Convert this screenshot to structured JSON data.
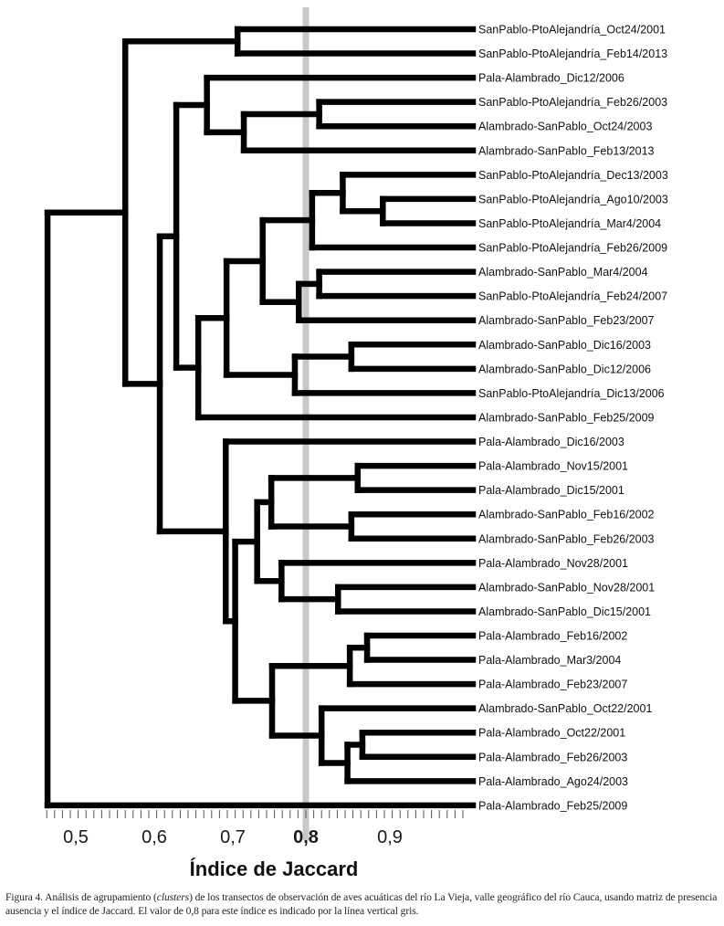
{
  "chart_data": {
    "type": "dendrogram",
    "title": "",
    "xlabel": "Índice de Jaccard",
    "ylabel": "",
    "xlim": [
      0.47,
      1.0
    ],
    "ticks": [
      {
        "value": 0.5,
        "label": "0,5",
        "bold": false
      },
      {
        "value": 0.6,
        "label": "0,6",
        "bold": false
      },
      {
        "value": 0.7,
        "label": "0,7",
        "bold": false
      },
      {
        "value": 0.8,
        "label": "0,8",
        "bold": true
      },
      {
        "value": 0.9,
        "label": "0,9",
        "bold": false
      }
    ],
    "minor_tick_step": 0.01,
    "reference_line": {
      "value": 0.8,
      "color": "#c8c8c8"
    },
    "line_color": "#000000",
    "leaves": [
      "SanPablo-PtoAlejandría_Oct24/2001",
      "SanPablo-PtoAlejandría_Feb14/2013",
      "Pala-Alambrado_Dic12/2006",
      "SanPablo-PtoAlejandría_Feb26/2003",
      "Alambrado-SanPablo_Oct24/2003",
      "Alambrado-SanPablo_Feb13/2013",
      "SanPablo-PtoAlejandría_Dec13/2003",
      "SanPablo-PtoAlejandría_Ago10/2003",
      "SanPablo-PtoAlejandría_Mar4/2004",
      "SanPablo-PtoAlejandría_Feb26/2009",
      "Alambrado-SanPablo_Mar4/2004",
      "SanPablo-PtoAlejandría_Feb24/2007",
      "Alambrado-SanPablo_Feb23/2007",
      "Alambrado-SanPablo_Dic16/2003",
      "Alambrado-SanPablo_Dic12/2006",
      "SanPablo-PtoAlejandría_Dic13/2006",
      "Alambrado-SanPablo_Feb25/2009",
      "Pala-Alambrado_Dic16/2003",
      "Pala-Alambrado_Nov15/2001",
      "Pala-Alambrado_Dic15/2001",
      "Alambrado-SanPablo_Feb16/2002",
      "Alambrado-SanPablo_Feb26/2003",
      "Pala-Alambrado_Nov28/2001",
      "Alambrado-SanPablo_Nov28/2001",
      "Alambrado-SanPablo_Dic15/2001",
      "Pala-Alambrado_Feb16/2002",
      "Pala-Alambrado_Mar3/2004",
      "Pala-Alambrado_Feb23/2007",
      "Alambrado-SanPablo_Oct22/2001",
      "Pala-Alambrado_Oct22/2001",
      "Pala-Alambrado_Feb26/2003",
      "Pala-Alambrado_Ago24/2003",
      "Pala-Alambrado_Feb25/2009"
    ],
    "tree": {
      "h": 0.471,
      "children": [
        {
          "h": 0.57,
          "children": [
            {
              "h": 0.713,
              "children": [
                {
                  "leaf": 0
                },
                {
                  "leaf": 1
                }
              ]
            },
            {
              "h": 0.614,
              "children": [
                {
                  "h": 0.635,
                  "children": [
                    {
                      "h": 0.674,
                      "children": [
                        {
                          "leaf": 2
                        },
                        {
                          "h": 0.721,
                          "children": [
                            {
                              "h": 0.817,
                              "children": [
                                {
                                  "leaf": 3
                                },
                                {
                                  "leaf": 4
                                }
                              ]
                            },
                            {
                              "leaf": 5
                            }
                          ]
                        }
                      ]
                    },
                    {
                      "h": 0.663,
                      "children": [
                        {
                          "h": 0.699,
                          "children": [
                            {
                              "h": 0.745,
                              "children": [
                                {
                                  "h": 0.808,
                                  "children": [
                                    {
                                      "h": 0.847,
                                      "children": [
                                        {
                                          "leaf": 6
                                        },
                                        {
                                          "h": 0.898,
                                          "children": [
                                            {
                                              "leaf": 7
                                            },
                                            {
                                              "leaf": 8
                                            }
                                          ]
                                        }
                                      ]
                                    },
                                    {
                                      "leaf": 9
                                    }
                                  ]
                                },
                                {
                                  "h": 0.791,
                                  "children": [
                                    {
                                      "h": 0.817,
                                      "children": [
                                        {
                                          "leaf": 10
                                        },
                                        {
                                          "leaf": 11
                                        }
                                      ]
                                    },
                                    {
                                      "leaf": 12
                                    }
                                  ]
                                }
                              ]
                            },
                            {
                              "h": 0.786,
                              "children": [
                                {
                                  "h": 0.858,
                                  "children": [
                                    {
                                      "leaf": 13
                                    },
                                    {
                                      "leaf": 14
                                    }
                                  ]
                                },
                                {
                                  "leaf": 15
                                }
                              ]
                            }
                          ]
                        },
                        {
                          "leaf": 16
                        }
                      ]
                    }
                  ]
                },
                {
                  "h": 0.698,
                  "children": [
                    {
                      "leaf": 17
                    },
                    {
                      "h": 0.71,
                      "children": [
                        {
                          "h": 0.738,
                          "children": [
                            {
                              "h": 0.756,
                              "children": [
                                {
                                  "h": 0.866,
                                  "children": [
                                    {
                                      "leaf": 18
                                    },
                                    {
                                      "leaf": 19
                                    }
                                  ]
                                },
                                {
                                  "h": 0.858,
                                  "children": [
                                    {
                                      "leaf": 20
                                    },
                                    {
                                      "leaf": 21
                                    }
                                  ]
                                }
                              ]
                            },
                            {
                              "h": 0.769,
                              "children": [
                                {
                                  "leaf": 22
                                },
                                {
                                  "h": 0.841,
                                  "children": [
                                    {
                                      "leaf": 23
                                    },
                                    {
                                      "leaf": 24
                                    }
                                  ]
                                }
                              ]
                            }
                          ]
                        },
                        {
                          "h": 0.757,
                          "children": [
                            {
                              "h": 0.856,
                              "children": [
                                {
                                  "h": 0.878,
                                  "children": [
                                    {
                                      "leaf": 25
                                    },
                                    {
                                      "leaf": 26
                                    }
                                  ]
                                },
                                {
                                  "leaf": 27
                                }
                              ]
                            },
                            {
                              "h": 0.82,
                              "children": [
                                {
                                  "leaf": 28
                                },
                                {
                                  "h": 0.853,
                                  "children": [
                                    {
                                      "h": 0.872,
                                      "children": [
                                        {
                                          "leaf": 29
                                        },
                                        {
                                          "leaf": 30
                                        }
                                      ]
                                    },
                                    {
                                      "leaf": 31
                                    }
                                  ]
                                }
                              ]
                            }
                          ]
                        }
                      ]
                    }
                  ]
                }
              ]
            }
          ]
        },
        {
          "leaf": 32
        }
      ]
    }
  },
  "caption": {
    "figure_label": "Figura 4.",
    "text_before_italic": " Análisis de agrupamiento (",
    "italic": "clusters",
    "text_after_italic": ") de los transectos de observación de aves acuáticas del río La Vieja, valle geográfico del río Cauca, usando matriz de presencia ausencia y el índice de Jaccard. El valor de 0,8 para este índice es indicado por la línea vertical gris."
  }
}
